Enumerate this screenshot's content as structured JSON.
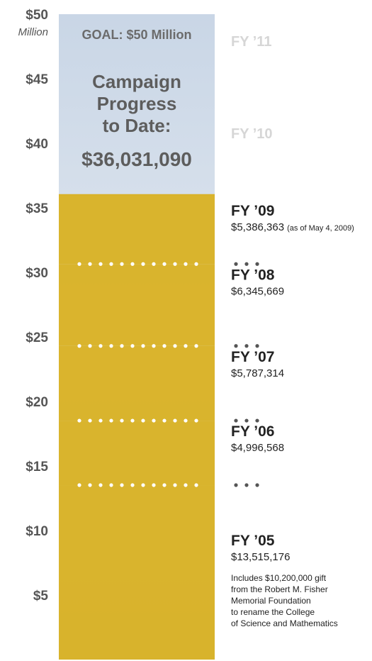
{
  "chart_data": {
    "type": "thermometer",
    "goal_label": "GOAL: $50 Million",
    "title_lines": [
      "Campaign",
      "Progress",
      "to Date:"
    ],
    "total": 36.03109,
    "total_label": "$36,031,090",
    "y_unit_label": "Million",
    "ylim": [
      0,
      50
    ],
    "yticks": [
      {
        "value": 5,
        "label": "$5"
      },
      {
        "value": 10,
        "label": "$10"
      },
      {
        "value": 15,
        "label": "$15"
      },
      {
        "value": 20,
        "label": "$20"
      },
      {
        "value": 25,
        "label": "$25"
      },
      {
        "value": 30,
        "label": "$30"
      },
      {
        "value": 35,
        "label": "$35"
      },
      {
        "value": 40,
        "label": "$40"
      },
      {
        "value": 45,
        "label": "$45"
      },
      {
        "value": 50,
        "label": "$50"
      }
    ],
    "categories": [
      "FY ’05",
      "FY ’06",
      "FY ’07",
      "FY ’08",
      "FY ’09",
      "FY ’10",
      "FY ’11"
    ],
    "values": [
      13.515176,
      4.996568,
      5.787314,
      6.345669,
      5.386363,
      null,
      null
    ],
    "value_labels": [
      "$13,515,176",
      "$4,996,568",
      "$5,787,314",
      "$6,345,669",
      "$5,386,363",
      null,
      null
    ],
    "notes": {
      "4": "(as of May 4, 2009)"
    },
    "fy05_note_lines": [
      "Includes $10,200,000 gift",
      "from the Robert M. Fisher",
      "Memorial Foundation",
      "to rename the College",
      "of Science and Mathematics"
    ],
    "color": "#d9b01c"
  }
}
